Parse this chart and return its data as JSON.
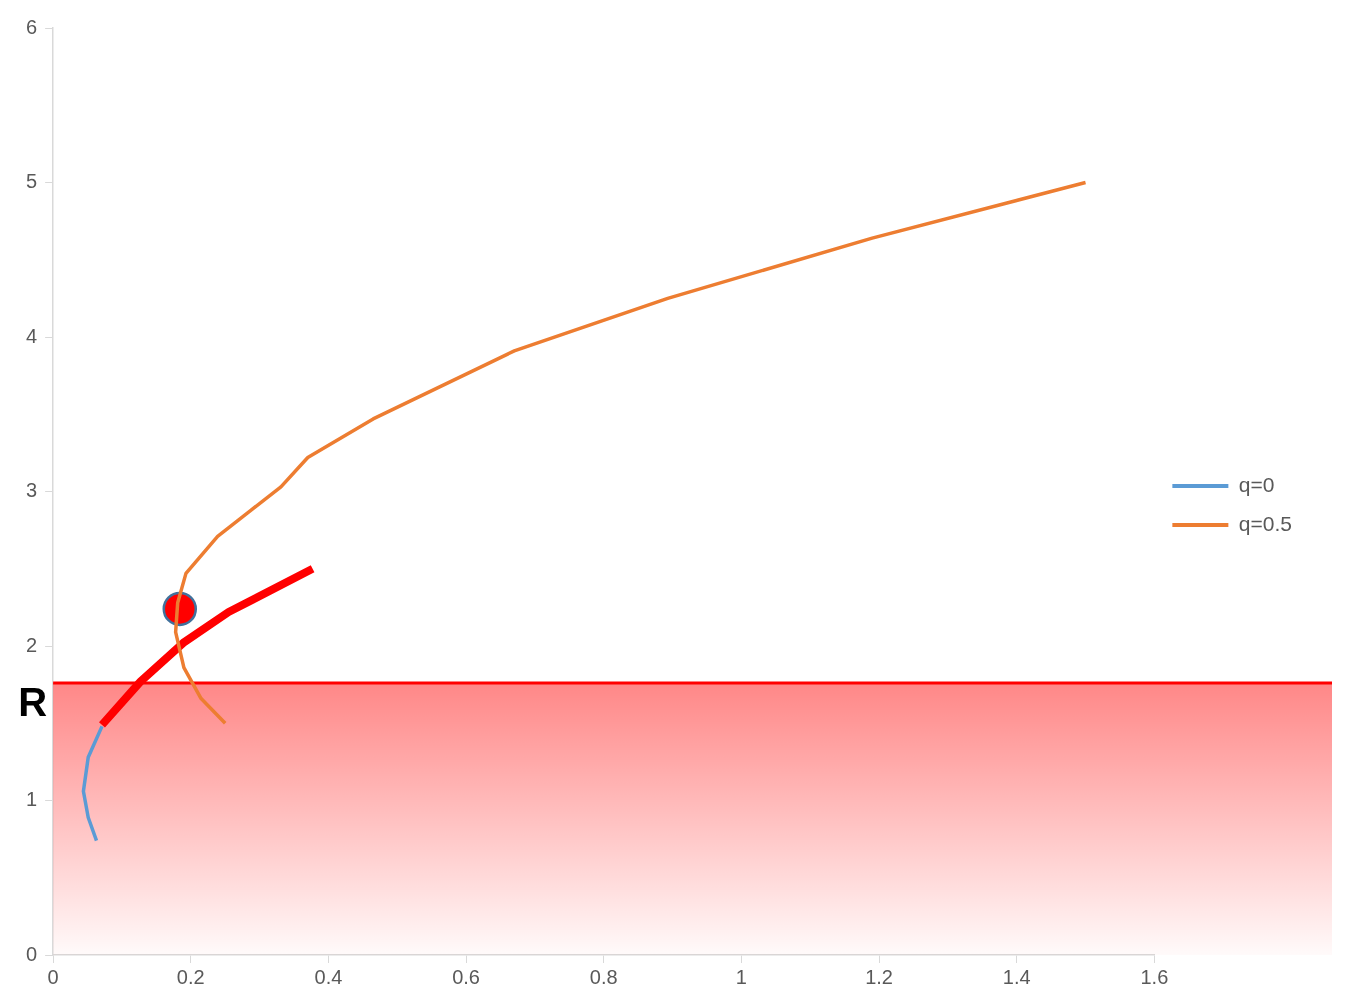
{
  "chart_data": {
    "type": "line",
    "xlim": [
      0,
      1.6
    ],
    "xticks": [
      0,
      0.2,
      0.4,
      0.6,
      0.8,
      1,
      1.2,
      1.4,
      1.6
    ],
    "ylim": [
      0,
      6
    ],
    "yticks": [
      0,
      1,
      2,
      3,
      4,
      5,
      6
    ],
    "grid": false,
    "legend": "right",
    "marker": "none",
    "series": [
      {
        "name": "q=0",
        "color": "#5b9bd5",
        "x": [
          0.063,
          0.051,
          0.044,
          0.051,
          0.071
        ],
        "values": [
          0.74,
          0.89,
          1.06,
          1.28,
          1.48
        ]
      },
      {
        "name": "q=0.5",
        "color": "#ed7d31",
        "x": [
          0.25,
          0.215,
          0.19,
          0.178,
          0.181,
          0.193,
          0.239,
          0.331,
          0.37,
          0.465,
          0.67,
          0.893,
          1.19,
          1.5
        ],
        "values": [
          1.5,
          1.66,
          1.86,
          2.09,
          2.28,
          2.47,
          2.71,
          3.03,
          3.22,
          3.47,
          3.91,
          4.25,
          4.64,
          5.0
        ]
      },
      {
        "color": "#ff0000",
        "x": [
          0.071,
          0.127,
          0.189,
          0.255,
          0.377
        ],
        "values": [
          1.49,
          1.77,
          2.02,
          2.22,
          2.5
        ]
      },
      {
        "type": "scatter",
        "marker": "circle",
        "color": "#ff0000",
        "x": [
          0.184
        ],
        "values": [
          2.24
        ]
      }
    ],
    "ref_lines": [
      {
        "axis": "y",
        "value": 1.76,
        "color": "#ff0000"
      }
    ],
    "bands": [
      {
        "axis": "y",
        "from": 0,
        "to": 1.76,
        "label": "R",
        "color": "#ff0000"
      }
    ]
  }
}
